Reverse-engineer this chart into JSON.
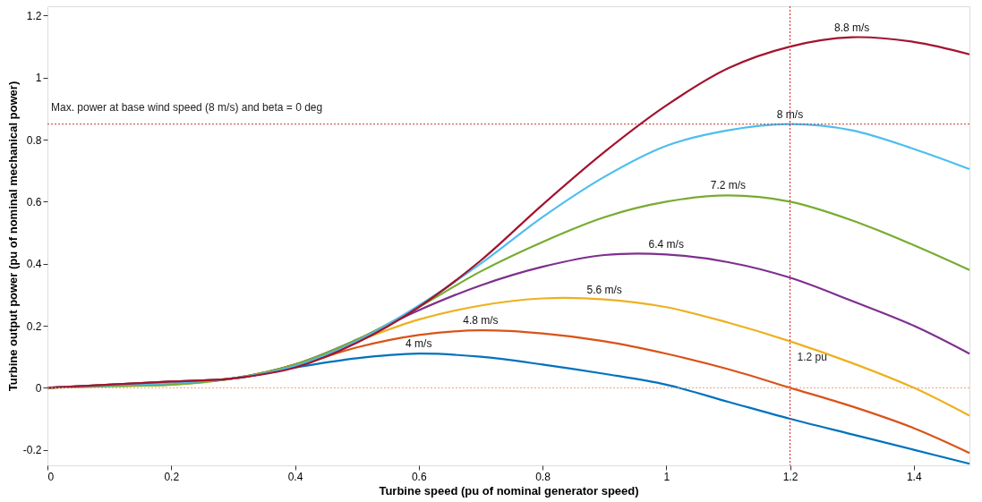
{
  "chart_data": {
    "type": "line",
    "xlabel": "Turbine speed (pu of nominal generator speed)",
    "ylabel": "Turbine output power (pu of nominal mechanical power)",
    "x": [
      0,
      0.1,
      0.2,
      0.3,
      0.4,
      0.5,
      0.6,
      0.7,
      0.8,
      0.9,
      1.0,
      1.1,
      1.2,
      1.3,
      1.4,
      1.49
    ],
    "series": [
      {
        "color": "#0072bd",
        "values": [
          0,
          0.01,
          0.02,
          0.03,
          0.065,
          0.095,
          0.11,
          0.1,
          0.075,
          0.045,
          0.01,
          -0.045,
          -0.1,
          -0.15,
          -0.2,
          -0.245
        ]
      },
      {
        "color": "#d95319",
        "values": [
          0,
          0.01,
          0.02,
          0.03,
          0.07,
          0.13,
          0.17,
          0.185,
          0.175,
          0.15,
          0.11,
          0.06,
          0,
          -0.06,
          -0.13,
          -0.21
        ]
      },
      {
        "color": "#edb120",
        "values": [
          0,
          0.005,
          0.01,
          0.03,
          0.075,
          0.15,
          0.22,
          0.265,
          0.288,
          0.285,
          0.26,
          0.21,
          0.15,
          0.08,
          0,
          -0.09
        ]
      },
      {
        "color": "#7e2f8e",
        "values": [
          0,
          0.008,
          0.015,
          0.03,
          0.075,
          0.155,
          0.25,
          0.33,
          0.39,
          0.428,
          0.43,
          0.405,
          0.355,
          0.28,
          0.2,
          0.11
        ]
      },
      {
        "color": "#77ac30",
        "values": [
          0,
          0.005,
          0.01,
          0.03,
          0.075,
          0.155,
          0.26,
          0.375,
          0.47,
          0.55,
          0.6,
          0.62,
          0.6,
          0.54,
          0.46,
          0.38
        ]
      },
      {
        "color": "#4dbeee",
        "values": [
          0,
          0.008,
          0.015,
          0.03,
          0.07,
          0.15,
          0.265,
          0.4,
          0.55,
          0.68,
          0.78,
          0.83,
          0.85,
          0.83,
          0.77,
          0.705
        ]
      },
      {
        "color": "#a2142f",
        "values": [
          0,
          0.01,
          0.02,
          0.03,
          0.065,
          0.145,
          0.26,
          0.41,
          0.59,
          0.76,
          0.91,
          1.03,
          1.1,
          1.13,
          1.115,
          1.075
        ]
      }
    ],
    "xlim": [
      0,
      1.49
    ],
    "xticks": [
      0,
      0.2,
      0.4,
      0.6,
      0.8,
      1,
      1.2,
      1.4
    ],
    "ylim": [
      -0.25,
      1.23
    ],
    "yticks": [
      -0.2,
      0,
      0.2,
      0.4,
      0.6,
      0.8,
      1,
      1.2
    ],
    "grid": false,
    "legend": false,
    "marker": "none",
    "line_style": "solid",
    "ref_lines": [
      {
        "axis": "y",
        "value": 0.85,
        "color": "#c0392b",
        "line_style": "dotted"
      },
      {
        "axis": "x",
        "value": 1.2,
        "label": "1.2 pu",
        "color": "#e02020",
        "line_style": "dotted"
      },
      {
        "axis": "y",
        "value": 0,
        "color": "#f0a070",
        "line_style": "dotted"
      }
    ],
    "annotations": [
      "Max. power at base wind speed (8 m/s) and beta = 0 deg",
      {
        "text": "4 m/s",
        "x": 0.6,
        "y": 0.11
      },
      {
        "text": "4.8 m/s",
        "x": 0.7,
        "y": 0.185
      },
      {
        "text": "5.6 m/s",
        "x": 0.9,
        "y": 0.285
      },
      {
        "text": "6.4 m/s",
        "x": 1.0,
        "y": 0.43
      },
      {
        "text": "7.2 m/s",
        "x": 1.1,
        "y": 0.62
      },
      {
        "text": "8 m/s",
        "x": 1.2,
        "y": 0.85
      },
      {
        "text": "8.8 m/s",
        "x": 1.3,
        "y": 1.13
      }
    ]
  }
}
